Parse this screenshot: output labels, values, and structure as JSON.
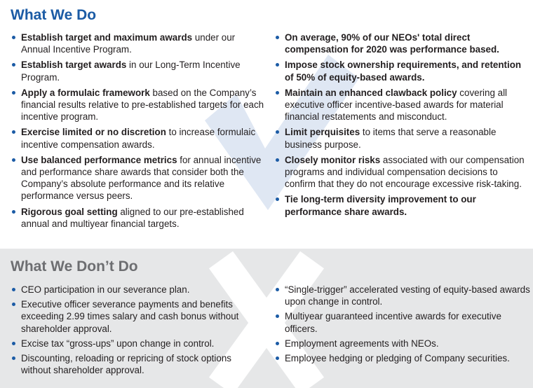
{
  "colors": {
    "accent": "#1b5ba5",
    "muted_heading": "#6d6e71",
    "panel_gray": "#e6e7e8",
    "check_watermark": "#dfe7f3"
  },
  "icons": {
    "do_watermark": "checkmark-icon",
    "dont_watermark": "x-mark-icon",
    "bullet": "bullet-dot"
  },
  "do_section": {
    "title": "What We Do",
    "left_items": [
      {
        "bold": "Establish target and maximum awards",
        "text": " under our Annual Incentive Program."
      },
      {
        "bold": "Establish target awards",
        "text": " in our Long-Term Incentive Program."
      },
      {
        "bold": "Apply a formulaic framework",
        "text": " based on the Company’s financial results relative to pre-established targets for each incentive program."
      },
      {
        "bold": "Exercise limited or no discretion",
        "text": " to increase formulaic incentive compensation awards."
      },
      {
        "bold": "Use balanced performance metrics",
        "text": " for annual incentive and performance share awards that consider both the Company’s absolute performance and its relative performance versus peers."
      },
      {
        "bold": "Rigorous goal setting",
        "text": " aligned to our pre-established annual and multiyear financial targets."
      }
    ],
    "right_items": [
      {
        "bold": "On average, 90% of our NEOs' total direct compensation for 2020 was performance based.",
        "text": ""
      },
      {
        "bold": "Impose stock ownership requirements, and retention of 50% of equity-based awards.",
        "text": ""
      },
      {
        "bold": "Maintain an enhanced clawback policy",
        "text": " covering all executive officer incentive-based awards for material financial restatements and misconduct."
      },
      {
        "bold": "Limit perquisites",
        "text": " to items that serve a reasonable business purpose."
      },
      {
        "bold": "Closely monitor risks",
        "text": " associated with our compensation programs and individual compensation decisions to confirm that they do not encourage excessive risk-taking."
      },
      {
        "bold": "Tie long-term diversity improvement to our performance share awards.",
        "text": ""
      }
    ]
  },
  "dont_section": {
    "title": "What We Don’t Do",
    "left_items": [
      "CEO participation in our severance plan.",
      "Executive officer severance payments and benefits exceeding 2.99 times salary and cash bonus without shareholder approval.",
      "Excise tax “gross-ups” upon change in control.",
      "Discounting, reloading or repricing of stock options without shareholder approval."
    ],
    "right_items": [
      "“Single-trigger” accelerated vesting of equity-based awards upon change in control.",
      "Multiyear guaranteed incentive awards for executive officers.",
      "Employment agreements with NEOs.",
      "Employee hedging or pledging of Company securities."
    ]
  }
}
